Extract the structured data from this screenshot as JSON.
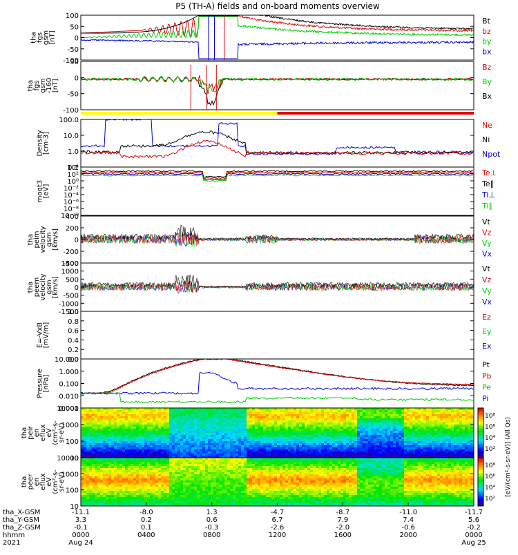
{
  "title": "P5 (TH-A) fields and on-board moments overview",
  "colors": {
    "black": "#000000",
    "red": "#e00000",
    "green": "#00cc00",
    "blue": "#0000dd",
    "yellow": "#ffff00",
    "bar_red": "#e00000"
  },
  "status_bar": {
    "segments": [
      {
        "color": "yellow",
        "from": 0,
        "to": 0.5
      },
      {
        "color": "bar_red",
        "from": 0.5,
        "to": 1.0
      }
    ]
  },
  "chart_data": [
    {
      "type": "line",
      "id": "fgs",
      "ylabel": [
        "tha",
        "fgs",
        "gsm",
        "[nT]"
      ],
      "ylim": [
        -100,
        100
      ],
      "y_ticks": [
        "100",
        "50",
        "0",
        "-50",
        "-100"
      ],
      "legend": [
        {
          "name": "Bt",
          "color": "black"
        },
        {
          "name": "bz",
          "color": "red"
        },
        {
          "name": "by",
          "color": "green"
        },
        {
          "name": "bx",
          "color": "blue"
        }
      ]
    },
    {
      "type": "line",
      "id": "fgs_e",
      "ylabel": [
        "tha",
        "fgs",
        "gsm",
        "-160",
        "[nT]"
      ],
      "ylim": [
        -120,
        70
      ],
      "y_ticks": [
        "50",
        "0",
        "-50",
        "-100"
      ],
      "legend": [
        {
          "name": "Bz",
          "color": "red"
        },
        {
          "name": "By",
          "color": "green"
        },
        {
          "name": "Bx",
          "color": "black"
        }
      ]
    },
    {
      "type": "line",
      "id": "density",
      "log": true,
      "ylabel": [
        "Density",
        "[cm-3]"
      ],
      "y_ticks": [
        "100.0",
        "10.0",
        "1.0",
        "0.1"
      ],
      "legend": [
        {
          "name": "Ne",
          "color": "red"
        },
        {
          "name": "Ni",
          "color": "black"
        },
        {
          "name": "Npot",
          "color": "blue"
        }
      ]
    },
    {
      "type": "line",
      "id": "temp",
      "log": true,
      "ylabel": [
        "moqt3",
        "[eV]"
      ],
      "y_ticks": [
        "10⁴",
        "10²",
        "10⁰",
        "10⁻²",
        "10⁻⁴",
        "10⁻⁶",
        "10⁻⁸",
        "10⁻¹⁰"
      ],
      "legend": [
        {
          "name": "Te⊥",
          "color": "red"
        },
        {
          "name": "Te∥",
          "color": "black"
        },
        {
          "name": "Ti⊥",
          "color": "blue"
        },
        {
          "name": "Ti∥",
          "color": "green"
        }
      ]
    },
    {
      "type": "line",
      "id": "ivel",
      "ylabel": [
        "tha",
        "peim",
        "velocity",
        "gsm",
        "[km/s]"
      ],
      "ylim": [
        -400,
        400
      ],
      "y_ticks": [
        "400",
        "200",
        "0",
        "-200",
        "-400"
      ],
      "legend": [
        {
          "name": "Vt",
          "color": "black"
        },
        {
          "name": "Vz",
          "color": "red"
        },
        {
          "name": "Vy",
          "color": "green"
        },
        {
          "name": "Vx",
          "color": "blue"
        }
      ]
    },
    {
      "type": "line",
      "id": "evel",
      "ylabel": [
        "tha",
        "peem",
        "velocity",
        "gsm",
        "[km/s]"
      ],
      "ylim": [
        -1500,
        1500
      ],
      "y_ticks": [
        "1500",
        "1000",
        "500",
        "0",
        "-500",
        "-1000",
        "-1500"
      ],
      "legend": [
        {
          "name": "Vt",
          "color": "black"
        },
        {
          "name": "Vz",
          "color": "red"
        },
        {
          "name": "Vy",
          "color": "green"
        },
        {
          "name": "Vx",
          "color": "blue"
        }
      ]
    },
    {
      "type": "line",
      "id": "efield",
      "ylabel": [
        "E=-VxB",
        "[mV/m]"
      ],
      "ylim": [
        0,
        1
      ],
      "y_ticks": [
        "1.0",
        "0.8",
        "0.6",
        "0.4",
        "0.2",
        "0.0"
      ],
      "legend": [
        {
          "name": "Ez",
          "color": "red"
        },
        {
          "name": "Ey",
          "color": "green"
        },
        {
          "name": "Ex",
          "color": "blue"
        }
      ]
    },
    {
      "type": "line",
      "id": "pressure",
      "log": true,
      "ylabel": [
        "Pressure",
        "[nPa]"
      ],
      "y_ticks": [
        "10.000",
        "1.000",
        "0.100",
        "0.010",
        "0.001"
      ],
      "legend": [
        {
          "name": "Pt",
          "color": "black"
        },
        {
          "name": "Pb",
          "color": "red"
        },
        {
          "name": "Pe",
          "color": "green"
        },
        {
          "name": "Pi",
          "color": "blue"
        }
      ]
    },
    {
      "type": "heatmap",
      "id": "ion_spec",
      "ylabel": [
        "tha",
        "peir",
        "en",
        "eflux",
        "eV",
        "(cm²-s-",
        "sr-eV)"
      ],
      "y_ticks": [
        "10000",
        "1000",
        "100",
        "10"
      ]
    },
    {
      "type": "heatmap",
      "id": "ele_spec",
      "ylabel": [
        "tha",
        "peer",
        "en",
        "eflux",
        "eV",
        "(cm²-s-",
        "sr-eV)"
      ],
      "y_ticks": [
        "10000",
        "1000",
        "100",
        "10"
      ]
    }
  ],
  "colorbar": {
    "label": "[eV/(cm²-s-sr-eV)] (All Qs)",
    "top_ticks": [
      "10⁸",
      "10⁶",
      "10⁴",
      "10²"
    ],
    "bottom_ticks": [
      "10⁸",
      "10⁶",
      "10⁴",
      "10²"
    ]
  },
  "x_axis": {
    "row_labels": [
      "tha_X-GSM",
      "tha_Y-GSM",
      "tha_Z-GSM",
      "hhmm",
      "2021"
    ],
    "columns": [
      [
        "-11.1",
        "3.3",
        "-0.1",
        "0000",
        "Aug 24"
      ],
      [
        "-8.0",
        "0.2",
        "0.1",
        "0400",
        ""
      ],
      [
        "1.3",
        "0.6",
        "-0.3",
        "0800",
        ""
      ],
      [
        "-4.7",
        "6.7",
        "-2.6",
        "1200",
        ""
      ],
      [
        "-8.7",
        "7.9",
        "-2.0",
        "1600",
        ""
      ],
      [
        "-11.0",
        "7.4",
        "-0.6",
        "2000",
        ""
      ],
      [
        "-11.7",
        "5.6",
        "-0.2",
        "0000",
        "Aug 25"
      ]
    ]
  }
}
